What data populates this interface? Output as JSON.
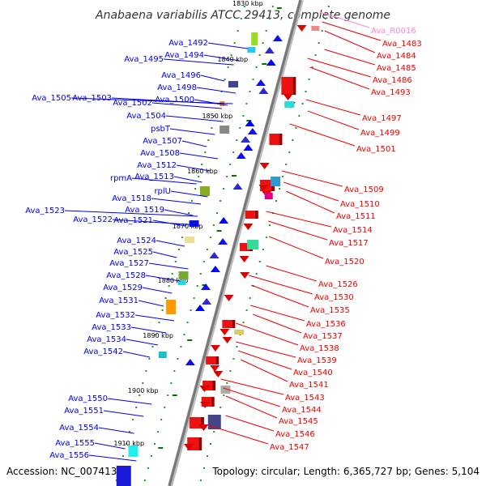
{
  "title": "Anabaena variabilis ATCC 29413, complete genome",
  "footer": {
    "accession": "Accession: NC_007413",
    "topology": "Topology: circular; Length: 6,365,727 bp; Genes: 5,104"
  },
  "colors": {
    "plus_strand_genes": "#0000ee",
    "minus_strand_genes": "#ee0000",
    "rna_gene": "#ff88cc",
    "backbone": "#777777",
    "kbp_ticks": "#007700"
  },
  "kbp_ticks": [
    "1830 kbp",
    "1840 kbp",
    "1850 kbp",
    "1860 kbp",
    "1870 kbp",
    "1880 kbp",
    "1890 kbp",
    "1900 kbp",
    "1910 kbp"
  ],
  "left_labels": [
    "Ava_1492",
    "Ava_1494",
    "Ava_1495",
    "Ava_1496",
    "Ava_1498",
    "Ava_1500",
    "Ava_1502",
    "Ava_1503",
    "Ava_1505",
    "Ava_1504",
    "psbT",
    "Ava_1507",
    "Ava_1508",
    "Ava_1512",
    "Ava_1513",
    "rpmA",
    "rplU",
    "Ava_1518",
    "Ava_1519",
    "Ava_1521",
    "Ava_1522",
    "Ava_1523",
    "Ava_1524",
    "Ava_1525",
    "Ava_1527",
    "Ava_1528",
    "Ava_1529",
    "Ava_1531",
    "Ava_1532",
    "Ava_1533",
    "Ava_1534",
    "Ava_1542",
    "Ava_1550",
    "Ava_1551",
    "Ava_1554",
    "Ava_1555",
    "Ava_1556"
  ],
  "right_labels": [
    "Ava_R0016",
    "Ava_1483",
    "Ava_1484",
    "Ava_1485",
    "Ava_1486",
    "Ava_1493",
    "Ava_1497",
    "Ava_1499",
    "Ava_1501",
    "Ava_1509",
    "Ava_1510",
    "Ava_1511",
    "Ava_1514",
    "Ava_1517",
    "Ava_1520",
    "Ava_1526",
    "Ava_1530",
    "Ava_1535",
    "Ava_1536",
    "Ava_1537",
    "Ava_1538",
    "Ava_1539",
    "Ava_1540",
    "Ava_1541",
    "Ava_1543",
    "Ava_1544",
    "Ava_1545",
    "Ava_1546",
    "Ava_1547"
  ]
}
